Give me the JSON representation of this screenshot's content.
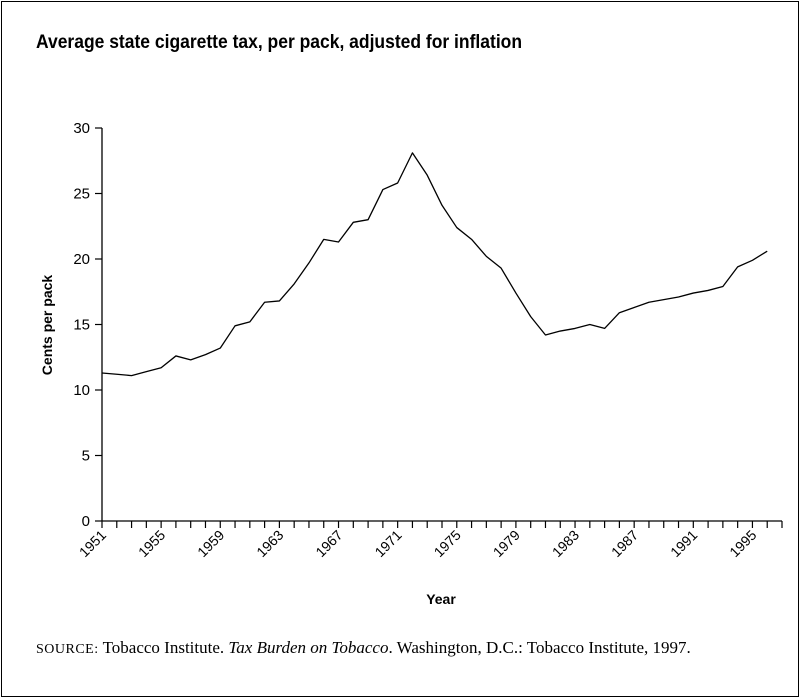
{
  "chart_data": {
    "type": "line",
    "title": "Average state cigarette tax, per pack, adjusted for inflation",
    "xlabel": "Year",
    "ylabel": "Cents per pack",
    "xlim": [
      1951,
      1997
    ],
    "ylim": [
      0,
      30
    ],
    "yticks": [
      0,
      5,
      10,
      15,
      20,
      25,
      30
    ],
    "xtick_labels": [
      1951,
      1955,
      1959,
      1963,
      1967,
      1971,
      1975,
      1979,
      1983,
      1987,
      1991,
      1995
    ],
    "grid": false,
    "legend": "none",
    "series": [
      {
        "x": [
          1951,
          1952,
          1953,
          1954,
          1955,
          1956,
          1957,
          1958,
          1959,
          1960,
          1961,
          1962,
          1963,
          1964,
          1965,
          1966,
          1967,
          1968,
          1969,
          1970,
          1971,
          1972,
          1973,
          1974,
          1975,
          1976,
          1977,
          1978,
          1979,
          1980,
          1981,
          1982,
          1983,
          1984,
          1985,
          1986,
          1987,
          1988,
          1989,
          1990,
          1991,
          1992,
          1993,
          1994,
          1995,
          1996
        ],
        "y": [
          11.3,
          11.2,
          11.1,
          11.4,
          11.7,
          12.6,
          12.3,
          12.7,
          13.2,
          14.9,
          15.2,
          16.7,
          16.8,
          18.1,
          19.7,
          21.5,
          21.3,
          22.8,
          23.0,
          25.3,
          25.8,
          28.1,
          26.4,
          24.1,
          22.4,
          21.5,
          20.2,
          19.3,
          17.4,
          15.6,
          14.2,
          14.5,
          14.7,
          15.0,
          14.7,
          15.9,
          16.3,
          16.7,
          16.9,
          17.1,
          17.4,
          17.6,
          17.9,
          19.4,
          19.9,
          20.6
        ]
      }
    ]
  },
  "source": {
    "label": "SOURCE:",
    "org": "Tobacco Institute.",
    "work_title": "Tax Burden on Tobacco",
    "rest": ". Washington, D.C.: Tobacco Institute, 1997."
  }
}
